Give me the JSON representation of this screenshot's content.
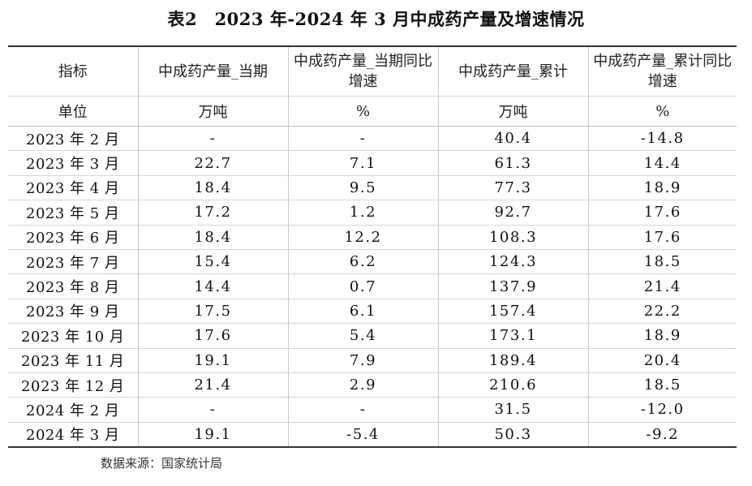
{
  "title": "表2　2023 年-2024 年 3 月中成药产量及增速情况",
  "table": {
    "headers": [
      "指标",
      "中成药产量_当期",
      "中成药产量_当期同比增速",
      "中成药产量_累计",
      "中成药产量_累计同比增速"
    ],
    "units": [
      "单位",
      "万吨",
      "%",
      "万吨",
      "%"
    ],
    "rows": [
      [
        "2023 年 2 月",
        "-",
        "-",
        "40.4",
        "-14.8"
      ],
      [
        "2023 年 3 月",
        "22.7",
        "7.1",
        "61.3",
        "14.4"
      ],
      [
        "2023 年 4 月",
        "18.4",
        "9.5",
        "77.3",
        "18.9"
      ],
      [
        "2023 年 5 月",
        "17.2",
        "1.2",
        "92.7",
        "17.6"
      ],
      [
        "2023 年 6 月",
        "18.4",
        "12.2",
        "108.3",
        "17.6"
      ],
      [
        "2023 年 7 月",
        "15.4",
        "6.2",
        "124.3",
        "18.5"
      ],
      [
        "2023 年 8 月",
        "14.4",
        "0.7",
        "137.9",
        "21.4"
      ],
      [
        "2023 年 9 月",
        "17.5",
        "6.1",
        "157.4",
        "22.2"
      ],
      [
        "2023 年 10 月",
        "17.6",
        "5.4",
        "173.1",
        "18.9"
      ],
      [
        "2023 年 11 月",
        "19.1",
        "7.9",
        "189.4",
        "20.4"
      ],
      [
        "2023 年 12 月",
        "21.4",
        "2.9",
        "210.6",
        "18.5"
      ],
      [
        "2024 年 2 月",
        "-",
        "-",
        "31.5",
        "-12.0"
      ],
      [
        "2024 年 3 月",
        "19.1",
        "-5.4",
        "50.3",
        "-9.2"
      ]
    ]
  },
  "source": "数据来源：国家统计局"
}
